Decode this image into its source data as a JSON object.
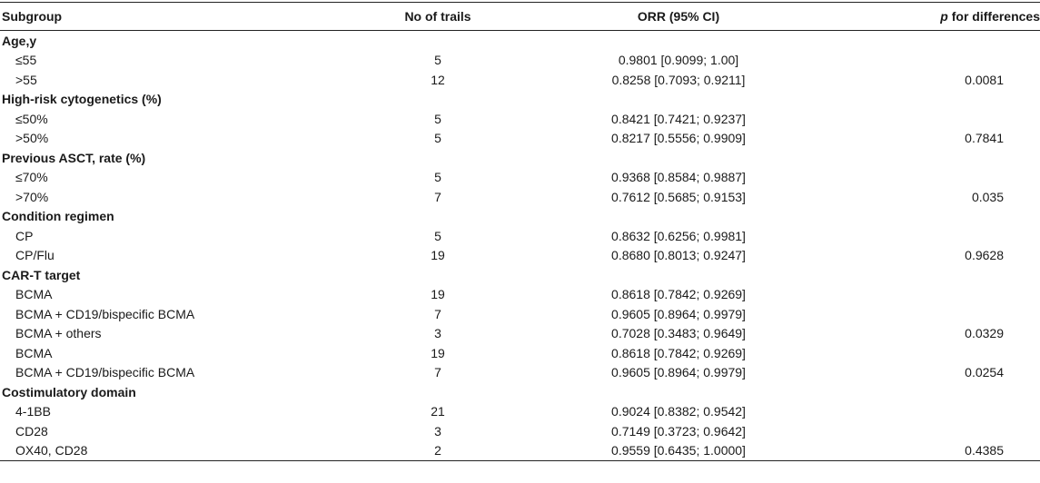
{
  "header": {
    "subgroup": "Subgroup",
    "trials": "No of trails",
    "orr": "ORR (95% CI)",
    "p_italic": "p",
    "p_rest": " for differences"
  },
  "groups": [
    {
      "title": "Age,y",
      "rows": [
        {
          "label": "≤55",
          "n": "5",
          "orr": "0.9801 [0.9099; 1.00]",
          "p": ""
        },
        {
          "label": ">55",
          "n": "12",
          "orr": "0.8258 [0.7093; 0.9211]",
          "p": "0.0081"
        }
      ]
    },
    {
      "title": "High-risk cytogenetics (%)",
      "rows": [
        {
          "label": "≤50%",
          "n": "5",
          "orr": "0.8421 [0.7421; 0.9237]",
          "p": ""
        },
        {
          "label": ">50%",
          "n": "5",
          "orr": "0.8217 [0.5556; 0.9909]",
          "p": "0.7841"
        }
      ]
    },
    {
      "title": "Previous ASCT, rate (%)",
      "rows": [
        {
          "label": "≤70%",
          "n": "5",
          "orr": "0.9368 [0.8584; 0.9887]",
          "p": ""
        },
        {
          "label": ">70%",
          "n": "7",
          "orr": "0.7612 [0.5685; 0.9153]",
          "p": "0.035"
        }
      ]
    },
    {
      "title": "Condition regimen",
      "rows": [
        {
          "label": "CP",
          "n": "5",
          "orr": "0.8632 [0.6256; 0.9981]",
          "p": ""
        },
        {
          "label": "CP/Flu",
          "n": "19",
          "orr": "0.8680 [0.8013; 0.9247]",
          "p": "0.9628"
        }
      ]
    },
    {
      "title": "CAR-T target",
      "rows": [
        {
          "label": "BCMA",
          "n": "19",
          "orr": "0.8618 [0.7842; 0.9269]",
          "p": ""
        },
        {
          "label": "BCMA + CD19/bispecific BCMA",
          "n": "7",
          "orr": "0.9605 [0.8964; 0.9979]",
          "p": ""
        },
        {
          "label": "BCMA + others",
          "n": "3",
          "orr": "0.7028 [0.3483; 0.9649]",
          "p": "0.0329"
        },
        {
          "label": "BCMA",
          "n": "19",
          "orr": "0.8618 [0.7842; 0.9269]",
          "p": ""
        },
        {
          "label": "BCMA + CD19/bispecific BCMA",
          "n": "7",
          "orr": "0.9605 [0.8964; 0.9979]",
          "p": "0.0254"
        }
      ]
    },
    {
      "title": "Costimulatory domain",
      "rows": [
        {
          "label": "4-1BB",
          "n": "21",
          "orr": "0.9024 [0.8382; 0.9542]",
          "p": ""
        },
        {
          "label": "CD28",
          "n": "3",
          "orr": "0.7149 [0.3723; 0.9642]",
          "p": ""
        },
        {
          "label": "OX40, CD28",
          "n": "2",
          "orr": "0.9559 [0.6435; 1.0000]",
          "p": "0.4385"
        }
      ]
    }
  ]
}
